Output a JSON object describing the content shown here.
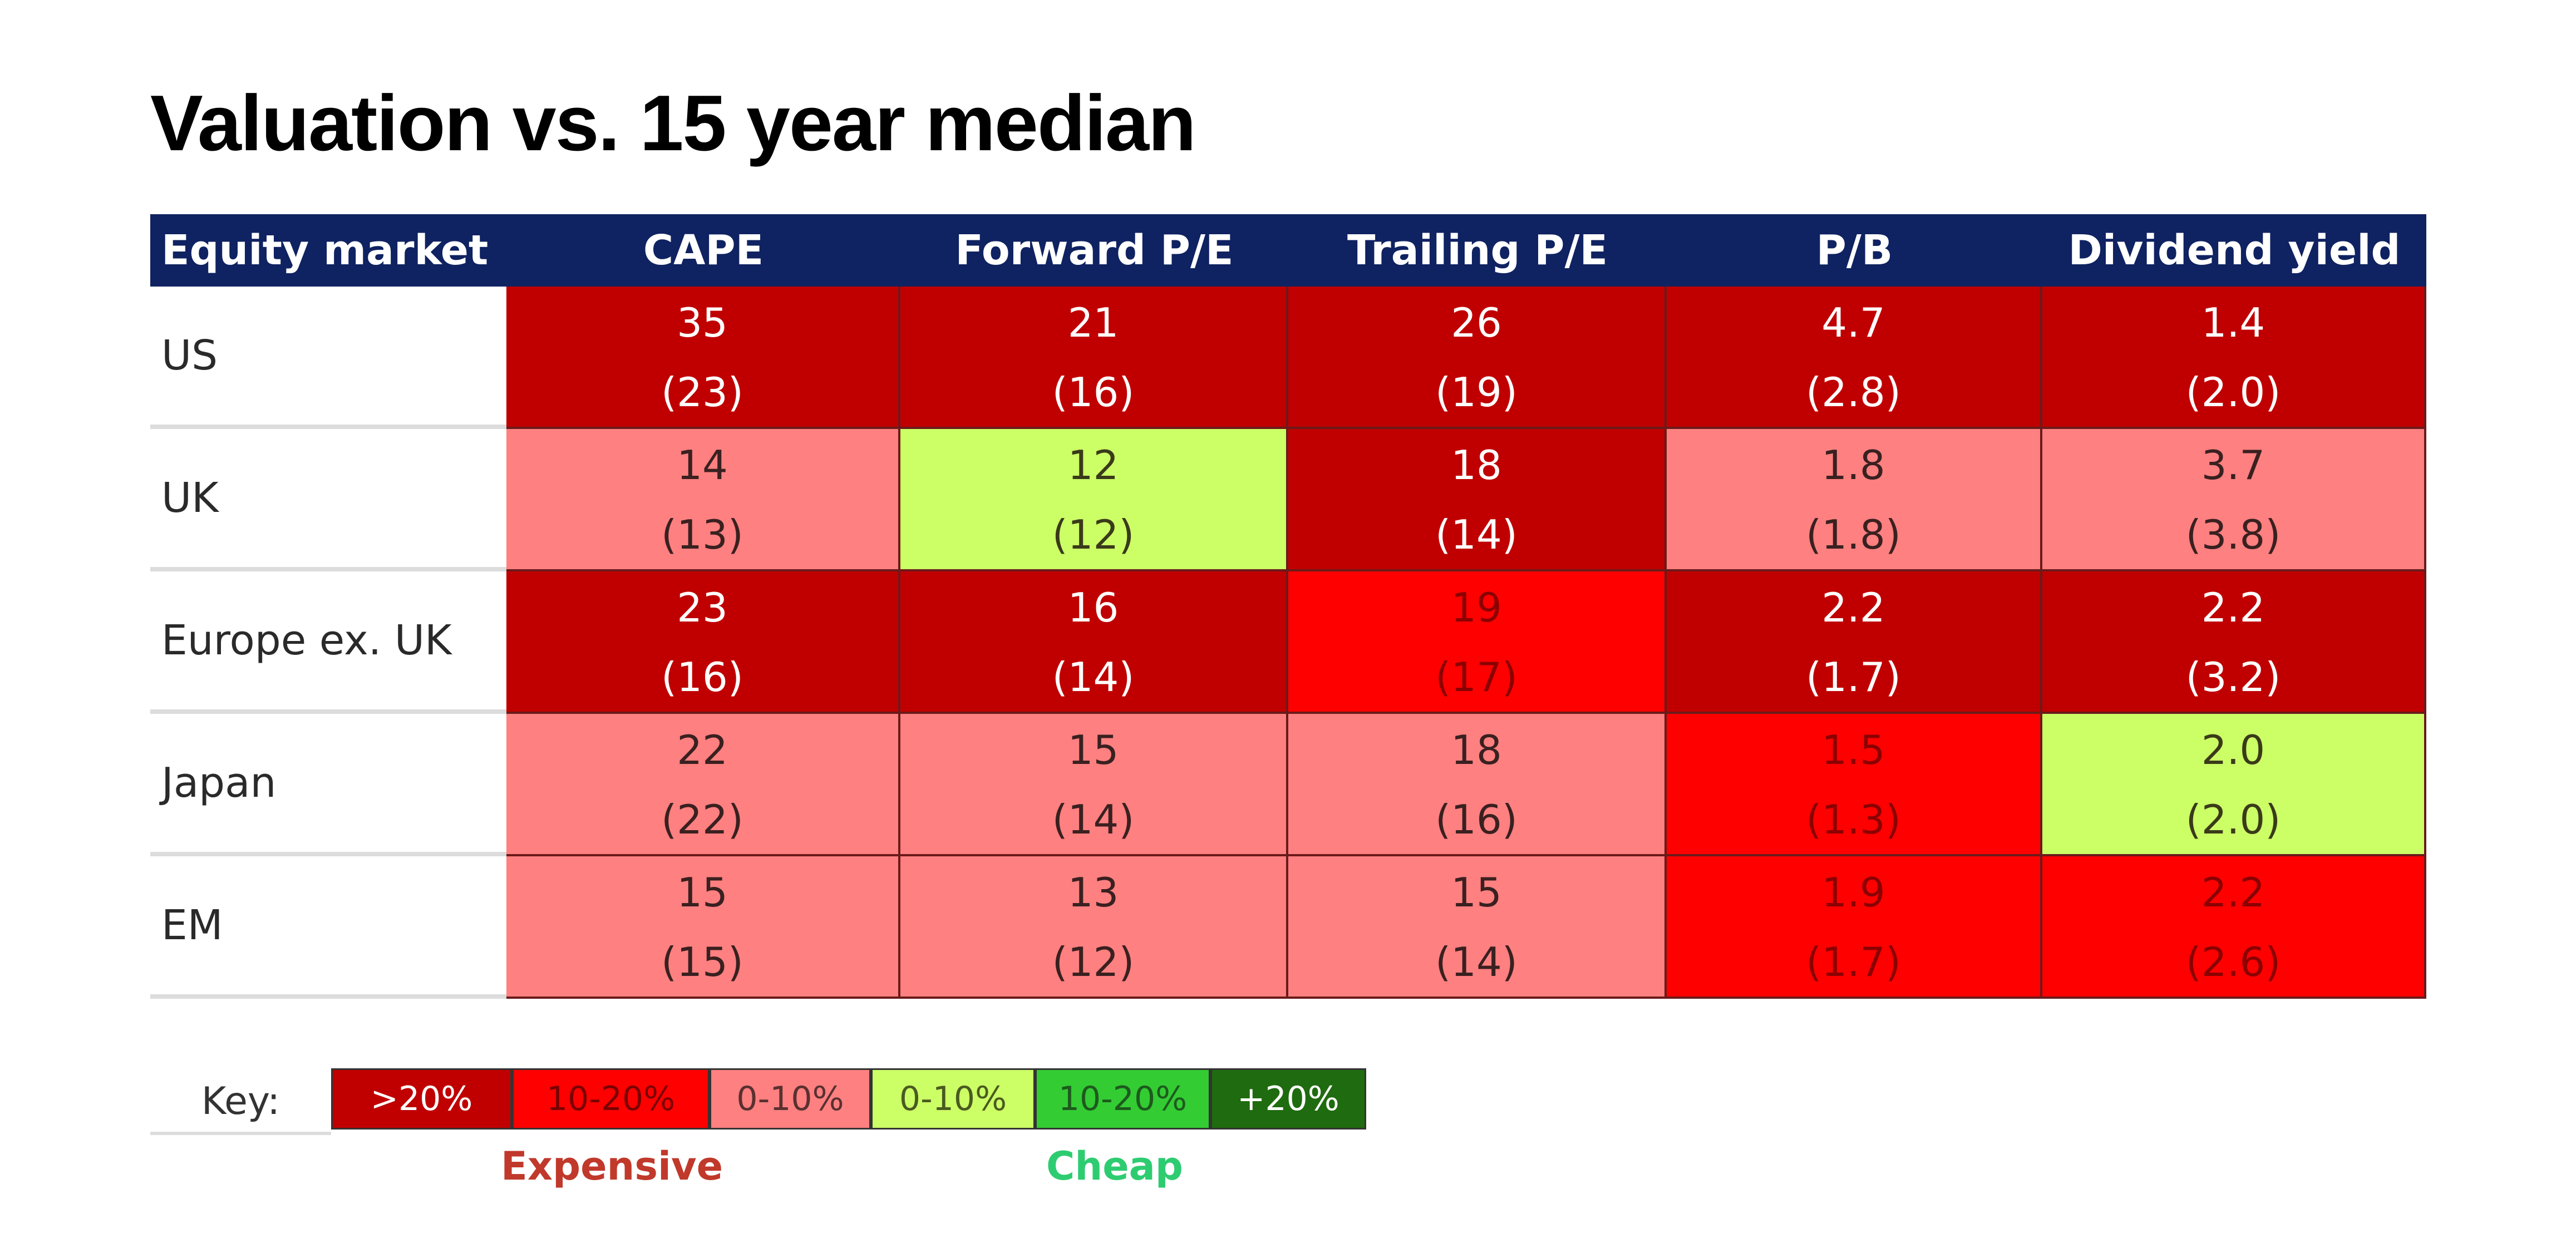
{
  "chart_data": {
    "type": "table",
    "title": "Valuation vs. 15 year median",
    "columns": [
      "Equity market",
      "CAPE",
      "Forward P/E",
      "Trailing P/E",
      "P/B",
      "Dividend yield"
    ],
    "rows": [
      {
        "market": "US",
        "values": [
          "35",
          "21",
          "26",
          "4.7",
          "1.4"
        ],
        "medians": [
          "(23)",
          "(16)",
          "(19)",
          "(2.8)",
          "(2.0)"
        ],
        "bands": [
          0,
          0,
          0,
          0,
          0
        ]
      },
      {
        "market": "UK",
        "values": [
          "14",
          "12",
          "18",
          "1.8",
          "3.7"
        ],
        "medians": [
          "(13)",
          "(12)",
          "(14)",
          "(1.8)",
          "(3.8)"
        ],
        "bands": [
          2,
          3,
          0,
          2,
          2
        ]
      },
      {
        "market": "Europe ex. UK",
        "values": [
          "23",
          "16",
          "19",
          "2.2",
          "2.2"
        ],
        "medians": [
          "(16)",
          "(14)",
          "(17)",
          "(1.7)",
          "(3.2)"
        ],
        "bands": [
          0,
          0,
          1,
          0,
          0
        ]
      },
      {
        "market": "Japan",
        "values": [
          "22",
          "15",
          "18",
          "1.5",
          "2.0"
        ],
        "medians": [
          "(22)",
          "(14)",
          "(16)",
          "(1.3)",
          "(2.0)"
        ],
        "bands": [
          2,
          2,
          2,
          1,
          3
        ]
      },
      {
        "market": "EM",
        "values": [
          "15",
          "13",
          "15",
          "1.9",
          "2.2"
        ],
        "medians": [
          "(15)",
          "(12)",
          "(14)",
          "(1.7)",
          "(2.6)"
        ],
        "bands": [
          2,
          2,
          2,
          1,
          1
        ]
      }
    ],
    "key": {
      "label": "Key:",
      "items": [
        {
          "label": ">20%",
          "color": "#c00000",
          "text_color": "#ffffff"
        },
        {
          "label": "10-20%",
          "color": "#ff0000",
          "text_color": "#7a0000"
        },
        {
          "label": "0-10%",
          "color": "#ff8080",
          "text_color": "#5a3030"
        },
        {
          "label": "0-10%",
          "color": "#ccff66",
          "text_color": "#4a5a20"
        },
        {
          "label": "10-20%",
          "color": "#33cc33",
          "text_color": "#1d5a1d"
        },
        {
          "label": "+20%",
          "color": "#1f6b0f",
          "text_color": "#ffffff"
        }
      ],
      "expensive_label": "Expensive",
      "cheap_label": "Cheap"
    }
  },
  "colors": {
    "header_bg": "#0f2261",
    "expensive_text": "#c0392b",
    "cheap_text": "#2ecc71"
  }
}
